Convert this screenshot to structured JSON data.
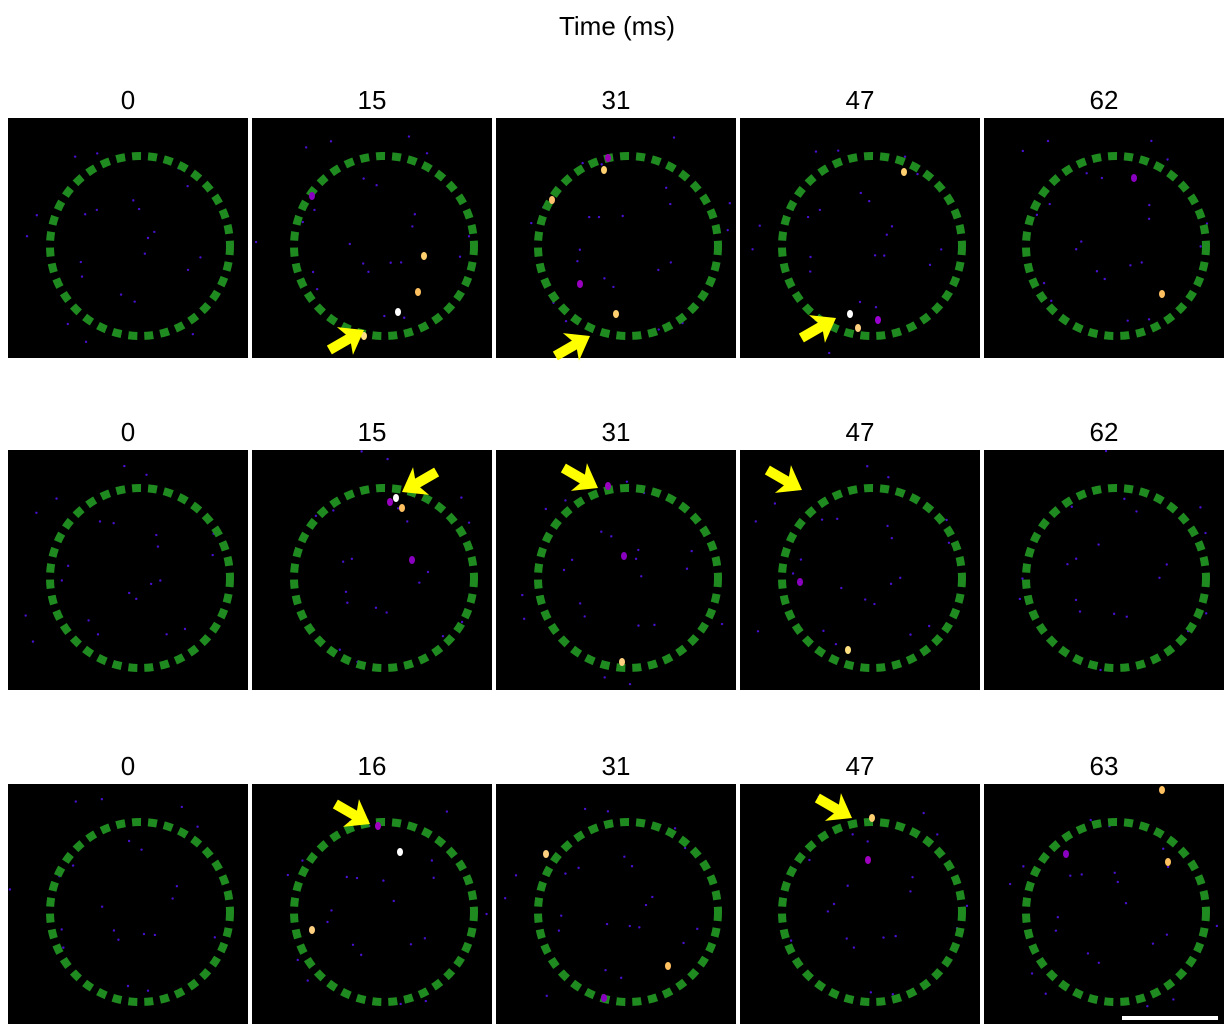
{
  "title": "Time (ms)",
  "rows": [
    {
      "labels": [
        "0",
        "15",
        "31",
        "47",
        "62"
      ]
    },
    {
      "labels": [
        "0",
        "15",
        "31",
        "47",
        "62"
      ]
    },
    {
      "labels": [
        "0",
        "16",
        "31",
        "47",
        "63"
      ]
    }
  ]
}
